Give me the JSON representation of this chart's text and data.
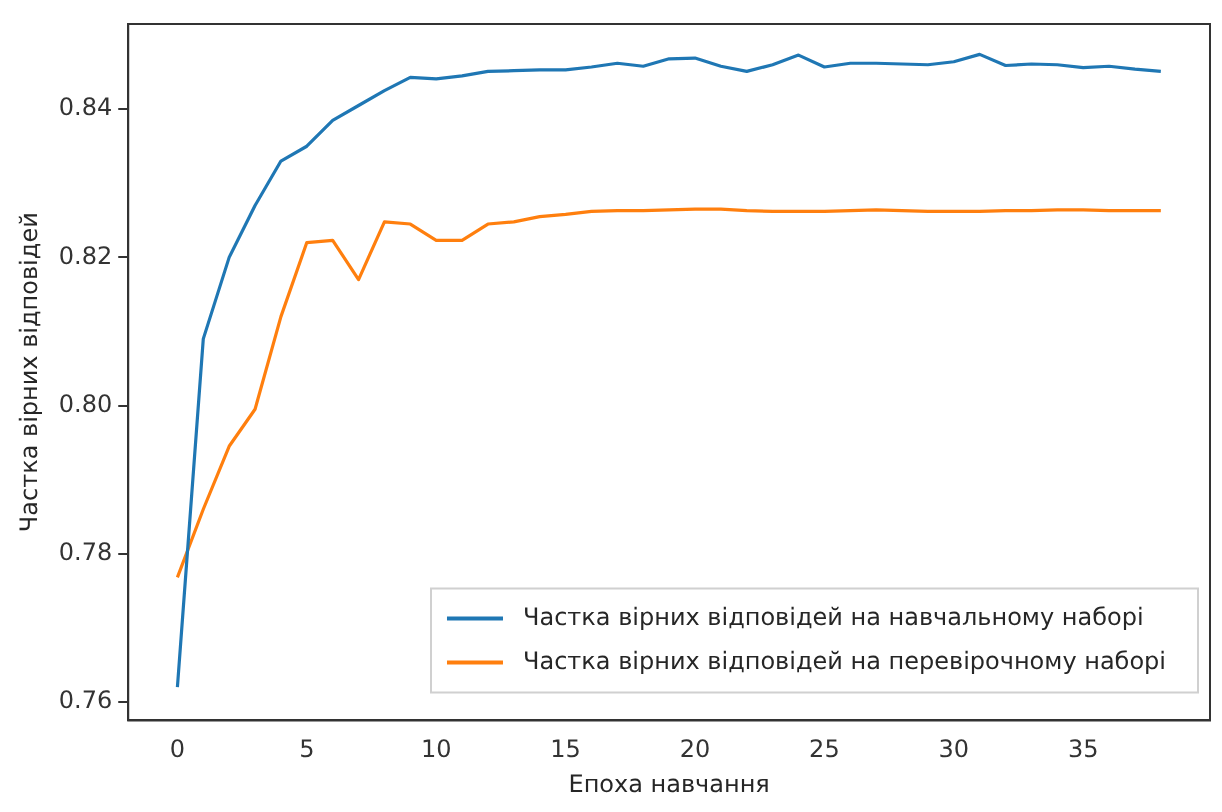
{
  "chart_data": {
    "type": "line",
    "xlabel": "Епоха навчання",
    "ylabel": "Частка вірних відповідей",
    "x": [
      0,
      1,
      2,
      3,
      4,
      5,
      6,
      7,
      8,
      9,
      10,
      11,
      12,
      13,
      14,
      15,
      16,
      17,
      18,
      19,
      20,
      21,
      22,
      23,
      24,
      25,
      26,
      27,
      28,
      29,
      30,
      31,
      32,
      33,
      34,
      35,
      36,
      37,
      38
    ],
    "series": [
      {
        "name": "Частка вірних відповідей на навчальному наборі",
        "color": "#1f77b4",
        "values": [
          0.762,
          0.809,
          0.82,
          0.827,
          0.833,
          0.835,
          0.8385,
          0.8405,
          0.8425,
          0.8443,
          0.8441,
          0.8445,
          0.8451,
          0.8452,
          0.8453,
          0.8453,
          0.8457,
          0.8462,
          0.8458,
          0.8468,
          0.8469,
          0.8458,
          0.8451,
          0.846,
          0.8473,
          0.8457,
          0.8462,
          0.8462,
          0.8461,
          0.846,
          0.8464,
          0.8474,
          0.8459,
          0.8461,
          0.846,
          0.8456,
          0.8458,
          0.8454,
          0.8451
        ]
      },
      {
        "name": "Частка вірних відповідей на перевірочному наборі",
        "color": "#ff7f0e",
        "values": [
          0.7768,
          0.786,
          0.7945,
          0.7995,
          0.812,
          0.822,
          0.8223,
          0.817,
          0.8248,
          0.8245,
          0.8223,
          0.8223,
          0.8245,
          0.8248,
          0.8255,
          0.8258,
          0.8262,
          0.8263,
          0.8263,
          0.8264,
          0.8265,
          0.8265,
          0.8263,
          0.8262,
          0.8262,
          0.8262,
          0.8263,
          0.8264,
          0.8263,
          0.8262,
          0.8262,
          0.8262,
          0.8263,
          0.8263,
          0.8264,
          0.8264,
          0.8263,
          0.8263,
          0.8263
        ]
      }
    ],
    "xlim": [
      -1.9,
      39.9
    ],
    "ylim": [
      0.7575,
      0.8515
    ],
    "xticks": [
      0,
      5,
      10,
      15,
      20,
      25,
      30,
      35
    ],
    "yticks": [
      {
        "value": 0.76,
        "label": "0.76"
      },
      {
        "value": 0.78,
        "label": "0.78"
      },
      {
        "value": 0.8,
        "label": "0.80"
      },
      {
        "value": 0.82,
        "label": "0.82"
      },
      {
        "value": 0.84,
        "label": "0.84"
      }
    ],
    "legend": "bottom right",
    "grid": false,
    "marker": "none",
    "line_style": "solid"
  }
}
